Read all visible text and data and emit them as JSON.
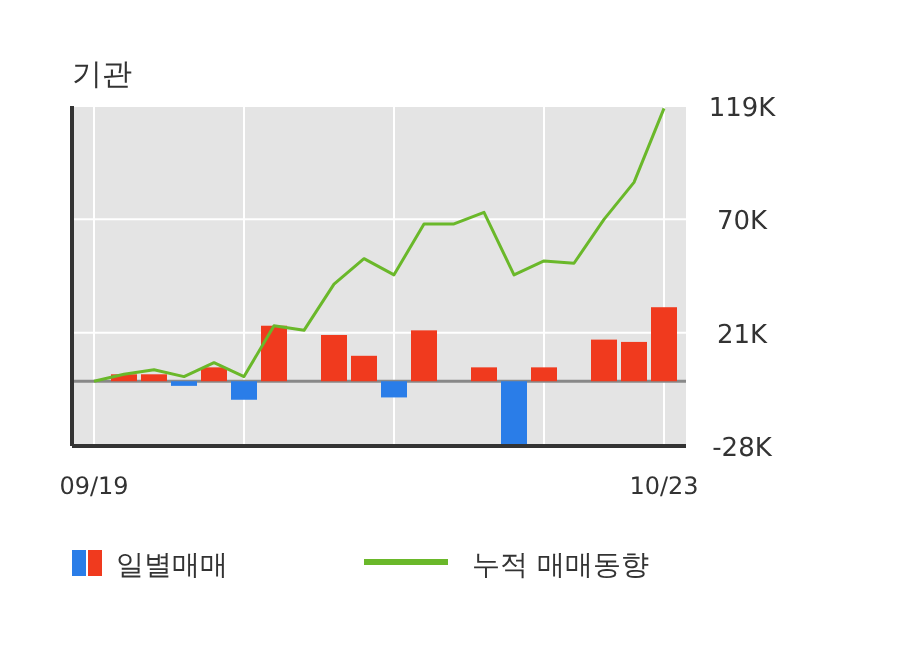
{
  "chart_data": {
    "type": "bar",
    "title": "기관",
    "categories": [
      "09/19",
      null,
      null,
      null,
      null,
      null,
      null,
      null,
      null,
      null,
      null,
      null,
      null,
      null,
      null,
      null,
      null,
      null,
      null,
      "10/23"
    ],
    "series": [
      {
        "name": "일별매매",
        "colors": [
          "#f03a1e",
          "#f03a1e",
          "#f03a1e",
          "#2a7de8",
          "#f03a1e",
          "#2a7de8",
          "#f03a1e",
          "#f03a1e",
          "#f03a1e",
          "#f03a1e",
          "#2a7de8",
          "#f03a1e",
          "#f03a1e",
          "#f03a1e",
          "#2a7de8",
          "#f03a1e",
          "#f03a1e",
          "#f03a1e",
          "#f03a1e",
          "#f03a1e"
        ],
        "values": [
          null,
          3,
          3,
          -2,
          6,
          -8,
          24,
          null,
          20,
          11,
          -7,
          22,
          null,
          6,
          -28,
          6,
          null,
          18,
          17,
          32
        ]
      },
      {
        "name": "누적 매매동향",
        "type": "line",
        "color": "#6ab82a",
        "values": [
          0,
          3,
          5,
          2,
          8,
          2,
          24,
          22,
          42,
          53,
          46,
          68,
          68,
          73,
          46,
          52,
          51,
          70,
          86,
          118
        ]
      }
    ],
    "ylim": [
      -28,
      119
    ],
    "yticks": [
      {
        "value": 119,
        "label": "119K"
      },
      {
        "value": 70,
        "label": "70K"
      },
      {
        "value": 21,
        "label": "21K"
      },
      {
        "value": -28,
        "label": "-28K"
      }
    ],
    "ref_lines": [
      {
        "axis": "y",
        "value": 0,
        "color": "#888888"
      }
    ],
    "grid": true,
    "legend": "bottom"
  }
}
